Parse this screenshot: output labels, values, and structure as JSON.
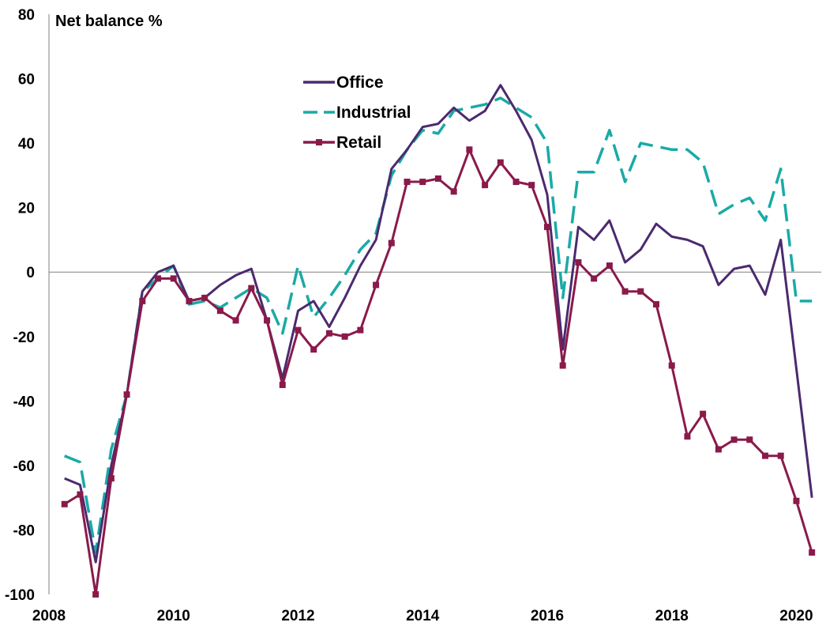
{
  "chart_data": {
    "type": "line",
    "ylabel": "Net balance %",
    "ylim": [
      -100,
      80
    ],
    "yticks": [
      "80",
      "60",
      "40",
      "20",
      "0",
      "-20",
      "-40",
      "-60",
      "-80",
      "-100"
    ],
    "xlim": [
      2008,
      2020.4
    ],
    "xticks": [
      "2008",
      "2010",
      "2012",
      "2014",
      "2016",
      "2018",
      "2020"
    ],
    "grid": false,
    "legend_position": "top-center",
    "x": [
      2008.25,
      2008.5,
      2008.75,
      2009.0,
      2009.25,
      2009.5,
      2009.75,
      2010.0,
      2010.25,
      2010.5,
      2010.75,
      2011.0,
      2011.25,
      2011.5,
      2011.75,
      2012.0,
      2012.25,
      2012.5,
      2012.75,
      2013.0,
      2013.25,
      2013.5,
      2013.75,
      2014.0,
      2014.25,
      2014.5,
      2014.75,
      2015.0,
      2015.25,
      2015.5,
      2015.75,
      2016.0,
      2016.25,
      2016.5,
      2016.75,
      2017.0,
      2017.25,
      2017.5,
      2017.75,
      2018.0,
      2018.25,
      2018.5,
      2018.75,
      2019.0,
      2019.25,
      2019.5,
      2019.75,
      2020.0,
      2020.25
    ],
    "series": [
      {
        "name": "Office",
        "color": "#4b2a6e",
        "style": "solid",
        "values": [
          -64,
          -66,
          -90,
          -60,
          -38,
          -6,
          0,
          2,
          -9,
          -8,
          -4,
          -1,
          1,
          -15,
          -33,
          -12,
          -9,
          -17,
          -8,
          2,
          10,
          32,
          38,
          45,
          46,
          51,
          47,
          50,
          58,
          50,
          41,
          24,
          -24,
          14,
          10,
          16,
          3,
          7,
          15,
          11,
          10,
          8,
          -4,
          1,
          2,
          -7,
          10,
          -30,
          -70
        ]
      },
      {
        "name": "Industrial",
        "color": "#1aaaa6",
        "style": "dashed",
        "values": [
          -57,
          -59,
          -87,
          -55,
          -38,
          -6,
          -2,
          2,
          -10,
          -9,
          -11,
          -8,
          -5,
          -8,
          -19,
          2,
          -14,
          -8,
          -1,
          7,
          12,
          30,
          38,
          44,
          43,
          50,
          51,
          52,
          54,
          51,
          48,
          40,
          -8,
          31,
          31,
          44,
          28,
          40,
          39,
          38,
          38,
          34,
          18,
          21,
          23,
          16,
          32,
          -9,
          -9
        ]
      },
      {
        "name": "Retail",
        "color": "#8a1a4a",
        "style": "solid-square-markers",
        "values": [
          -72,
          -69,
          -100,
          -64,
          -38,
          -9,
          -2,
          -2,
          -9,
          -8,
          -12,
          -15,
          -5,
          -15,
          -35,
          -18,
          -24,
          -19,
          -20,
          -18,
          -4,
          9,
          28,
          28,
          29,
          25,
          38,
          27,
          34,
          28,
          27,
          14,
          -29,
          3,
          -2,
          2,
          -6,
          -6,
          -10,
          -29,
          -51,
          -44,
          -55,
          -52,
          -52,
          -57,
          -57,
          -71,
          -87
        ]
      }
    ]
  }
}
